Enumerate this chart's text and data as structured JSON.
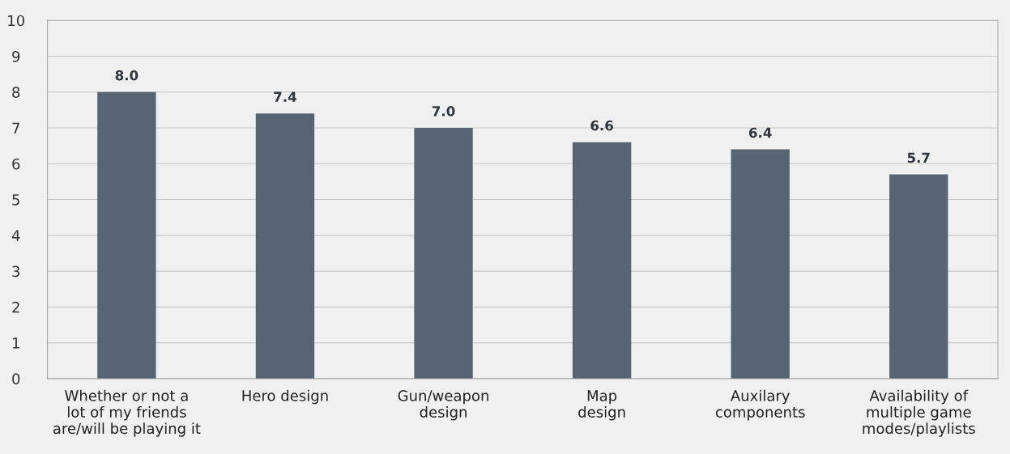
{
  "chart_data": {
    "type": "bar",
    "categories": [
      "Whether or not a\nlot of my friends\nare/will be playing it",
      "Hero design",
      "Gun/weapon\ndesign",
      "Map\ndesign",
      "Auxilary\ncomponents",
      "Availability of\nmultiple game\nmodes/playlists"
    ],
    "values": [
      8.0,
      7.4,
      7.0,
      6.6,
      6.4,
      5.7
    ],
    "color": "#566473",
    "ylim": [
      0,
      10
    ],
    "yticks": [
      0,
      1,
      2,
      3,
      4,
      5,
      6,
      7,
      8,
      9,
      10
    ],
    "grid": "y",
    "value_labels": [
      "8.0",
      "7.4",
      "7.0",
      "6.6",
      "6.4",
      "5.7"
    ]
  }
}
